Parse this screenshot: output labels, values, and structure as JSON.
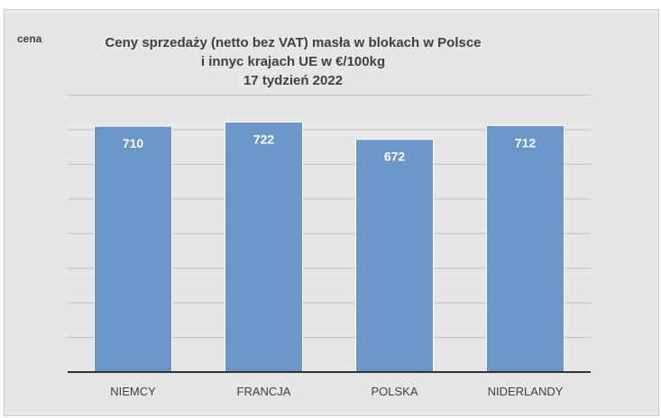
{
  "chart_data": {
    "type": "bar",
    "title_lines": [
      "Ceny sprzedaży (netto bez VAT) masła w blokach w Polsce",
      "i  innyc krajach UE w €/100kg",
      "17 tydzień 2022"
    ],
    "ylabel": "cena",
    "xlabel": "",
    "categories": [
      "NIEMCY",
      "FRANCJA",
      "POLSKA",
      "NIDERLANDY"
    ],
    "values": [
      710,
      722,
      672,
      712
    ],
    "data_labels": [
      "710",
      "722",
      "672",
      "712"
    ],
    "ylim": [
      0,
      800
    ],
    "grid": true,
    "bar_color": "#6a96c9",
    "bar_edge_color": "#ffffff",
    "background_color": "#e6e6e6",
    "gridline_color": "#bfbfbf",
    "axis_color": "#333333"
  }
}
